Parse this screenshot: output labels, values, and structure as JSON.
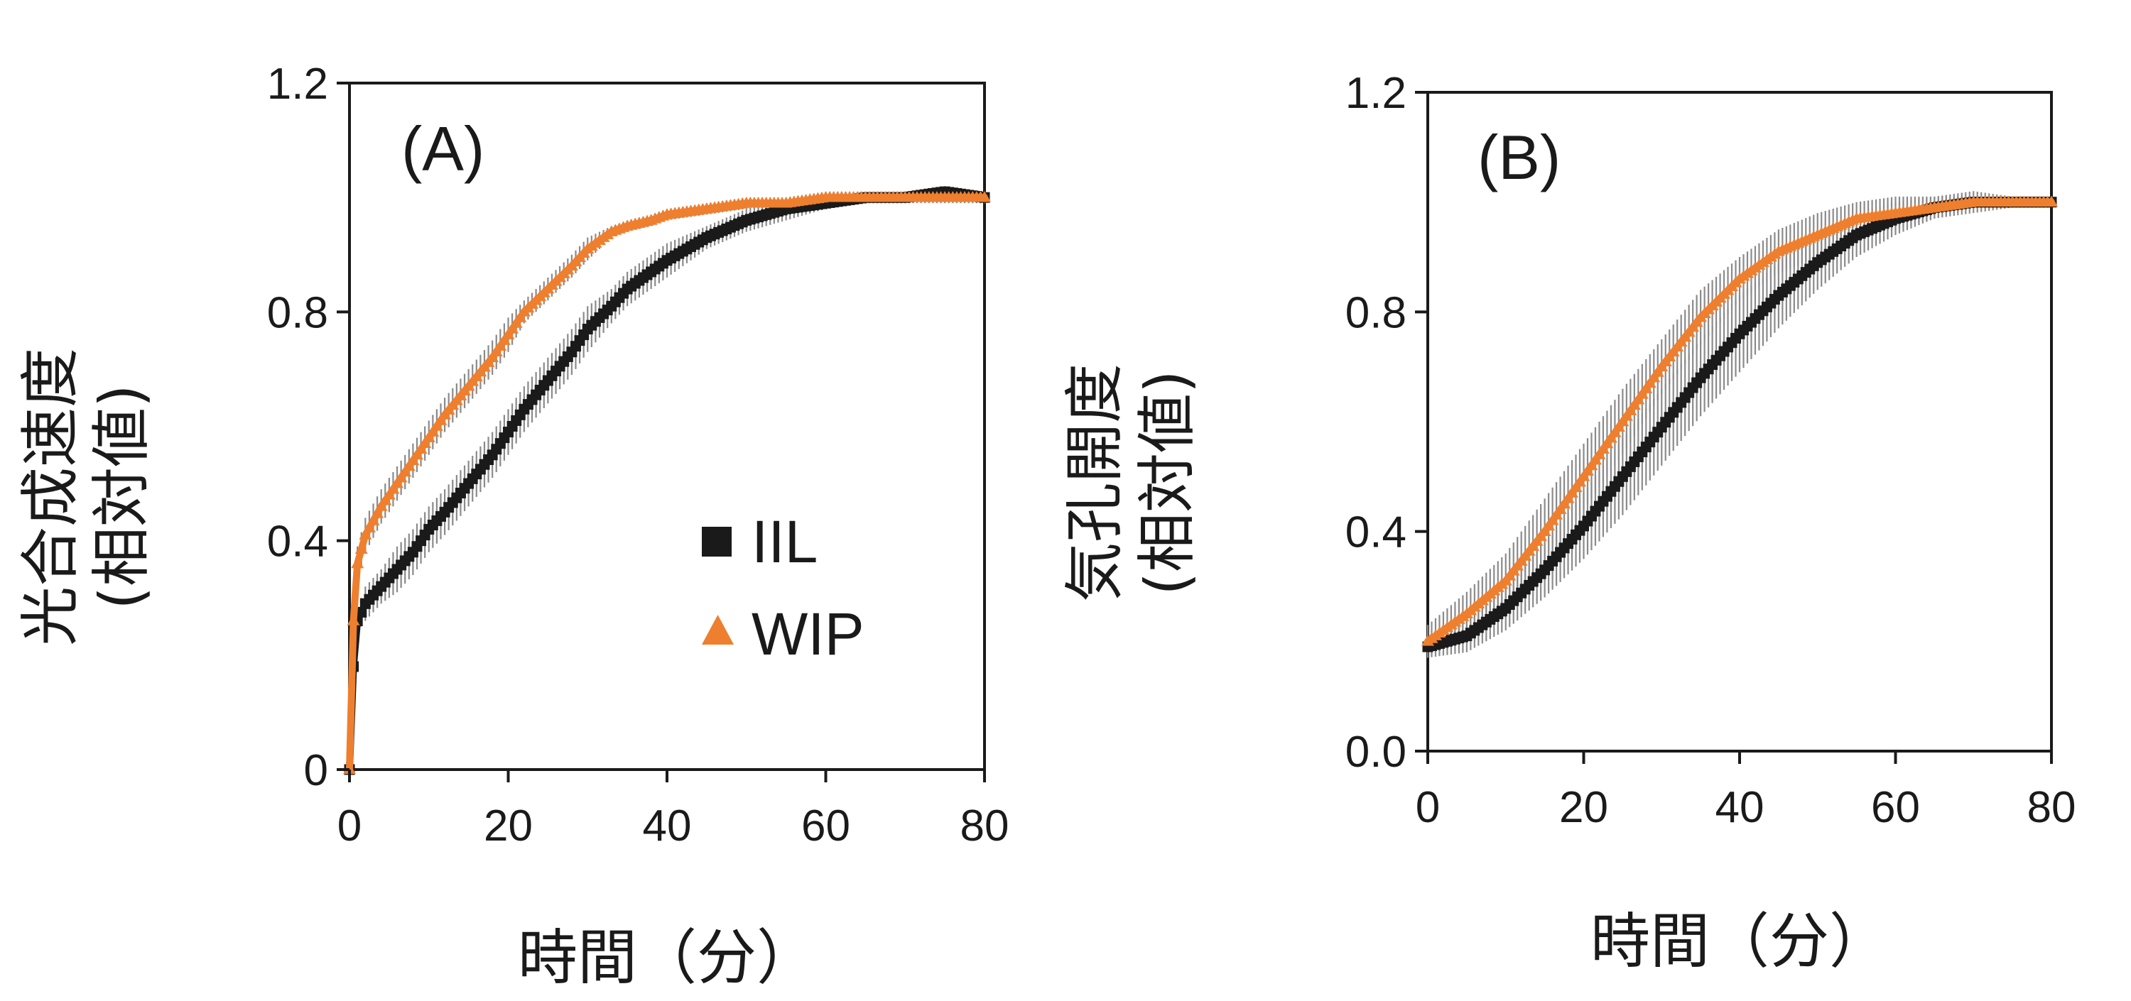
{
  "colors": {
    "IIL": "#1a1a1a",
    "WIP": "#ee7f2f",
    "error": "#8a8a8a",
    "axis": "#1a1a1a"
  },
  "chart_data": [
    {
      "type": "line",
      "panel_label": "(A)",
      "xlabel": "時間（分）",
      "ylabel_line1": "光合成速度",
      "ylabel_line2": "(相対値)",
      "xlim": [
        0,
        80
      ],
      "ylim": [
        0,
        1.2
      ],
      "xticks": [
        0,
        20,
        40,
        60,
        80
      ],
      "yticks": [
        0,
        0.4,
        0.8,
        1.2
      ],
      "xtick_labels": [
        "0",
        "20",
        "40",
        "60",
        "80"
      ],
      "ytick_labels": [
        "0",
        "0.4",
        "0.8",
        "1.2"
      ],
      "grid": false,
      "legend_position": "lower-right",
      "legend": [
        {
          "name": "IIL",
          "marker": "square"
        },
        {
          "name": "WIP",
          "marker": "triangle"
        }
      ],
      "series": [
        {
          "name": "IIL",
          "x": [
            0,
            0.5,
            1,
            2,
            4,
            6,
            8,
            10,
            12,
            15,
            18,
            20,
            22,
            25,
            28,
            30,
            33,
            35,
            38,
            40,
            45,
            50,
            55,
            60,
            65,
            70,
            75,
            80
          ],
          "y": [
            0,
            0.18,
            0.26,
            0.29,
            0.32,
            0.35,
            0.38,
            0.42,
            0.45,
            0.5,
            0.55,
            0.59,
            0.63,
            0.68,
            0.73,
            0.77,
            0.81,
            0.84,
            0.87,
            0.89,
            0.93,
            0.96,
            0.98,
            0.99,
            1.0,
            1.0,
            1.01,
            1.0
          ],
          "err": [
            0,
            0.02,
            0.02,
            0.03,
            0.03,
            0.04,
            0.04,
            0.04,
            0.04,
            0.04,
            0.04,
            0.04,
            0.04,
            0.04,
            0.04,
            0.04,
            0.03,
            0.03,
            0.03,
            0.03,
            0.02,
            0.02,
            0.02,
            0.01,
            0.01,
            0.01,
            0.01,
            0.01
          ]
        },
        {
          "name": "WIP",
          "x": [
            0,
            0.5,
            1,
            2,
            4,
            6,
            8,
            10,
            12,
            15,
            18,
            20,
            22,
            25,
            28,
            30,
            33,
            35,
            38,
            40,
            45,
            50,
            55,
            60,
            65,
            70,
            75,
            80
          ],
          "y": [
            0,
            0.26,
            0.36,
            0.41,
            0.46,
            0.5,
            0.54,
            0.58,
            0.62,
            0.67,
            0.72,
            0.76,
            0.8,
            0.84,
            0.88,
            0.91,
            0.94,
            0.95,
            0.96,
            0.97,
            0.98,
            0.99,
            0.99,
            1.0,
            1.0,
            1.0,
            1.0,
            1.0
          ],
          "err": [
            0,
            0.03,
            0.03,
            0.03,
            0.03,
            0.03,
            0.03,
            0.03,
            0.03,
            0.03,
            0.03,
            0.03,
            0.02,
            0.02,
            0.02,
            0.02,
            0.01,
            0.01,
            0.01,
            0.01,
            0.01,
            0.01,
            0.01,
            0.01,
            0.01,
            0.01,
            0.01,
            0.01
          ]
        }
      ]
    },
    {
      "type": "line",
      "panel_label": "(B)",
      "xlabel": "時間（分）",
      "ylabel_line1": "気孔開度",
      "ylabel_line2": "(相対値)",
      "xlim": [
        0,
        80
      ],
      "ylim": [
        0,
        1.2
      ],
      "xticks": [
        0,
        20,
        40,
        60,
        80
      ],
      "yticks": [
        0,
        0.4,
        0.8,
        1.2
      ],
      "xtick_labels": [
        "0",
        "20",
        "40",
        "60",
        "80"
      ],
      "ytick_labels": [
        "0.0",
        "0.4",
        "0.8",
        "1.2"
      ],
      "grid": false,
      "series": [
        {
          "name": "IIL",
          "x": [
            0,
            5,
            10,
            15,
            20,
            25,
            30,
            35,
            40,
            45,
            50,
            55,
            60,
            65,
            70,
            75,
            80
          ],
          "y": [
            0.19,
            0.21,
            0.26,
            0.33,
            0.41,
            0.5,
            0.59,
            0.68,
            0.76,
            0.83,
            0.89,
            0.94,
            0.97,
            0.99,
            1.0,
            1.0,
            1.0
          ],
          "err": [
            0.02,
            0.03,
            0.04,
            0.05,
            0.06,
            0.07,
            0.07,
            0.07,
            0.07,
            0.06,
            0.05,
            0.04,
            0.03,
            0.02,
            0.01,
            0.01,
            0.01
          ]
        },
        {
          "name": "WIP",
          "x": [
            0,
            5,
            10,
            15,
            20,
            25,
            30,
            35,
            40,
            45,
            50,
            55,
            60,
            65,
            70,
            75,
            80
          ],
          "y": [
            0.2,
            0.25,
            0.31,
            0.4,
            0.5,
            0.6,
            0.7,
            0.79,
            0.86,
            0.91,
            0.94,
            0.97,
            0.98,
            0.99,
            1.0,
            1.0,
            1.0
          ],
          "err": [
            0.03,
            0.04,
            0.05,
            0.06,
            0.06,
            0.06,
            0.05,
            0.05,
            0.04,
            0.04,
            0.04,
            0.03,
            0.03,
            0.02,
            0.02,
            0.01,
            0.01
          ]
        }
      ]
    }
  ]
}
